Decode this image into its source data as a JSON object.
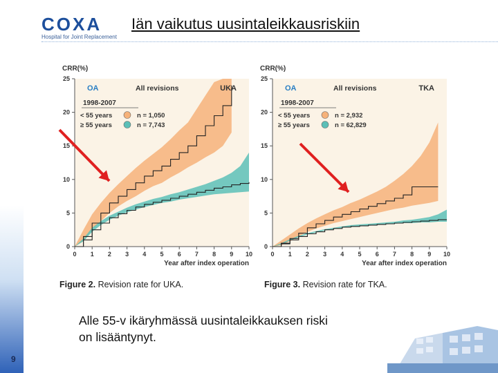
{
  "logo": {
    "word": "COXA",
    "subtitle": "Hospital for Joint Replacement"
  },
  "title": "Iän vaikutus uusintaleikkausriskiin",
  "body_text_line1": "Alle 55-v ikäryhmässä uusintaleikkauksen riski",
  "body_text_line2": "on lisääntynyt.",
  "page_number": "9",
  "colors": {
    "young": "#f6b27a",
    "old": "#5cbfb7",
    "arrow": "#e02020",
    "panel_bg": "#fbf3e6",
    "line": "#222222"
  },
  "chart_data": [
    {
      "type": "line",
      "ylabel": "CRR(%)",
      "xlabel": "Year after index operation",
      "ylim": [
        0,
        25
      ],
      "xlim": [
        0,
        10
      ],
      "yticks": [
        0,
        5,
        10,
        15,
        20,
        25
      ],
      "xticks": [
        0,
        1,
        2,
        3,
        4,
        5,
        6,
        7,
        8,
        9,
        10
      ],
      "label_oa": "OA",
      "label_rev": "All revisions",
      "label_type": "UKA",
      "period": "1998-2007",
      "legend": [
        {
          "text": "< 55 years",
          "n": "n = 1,050"
        },
        {
          "text": "≥ 55 years",
          "n": "n = 7,743"
        }
      ],
      "caption_prefix": "Figure 2.",
      "caption_text": "Revision rate for UKA.",
      "series": [
        {
          "group": "young",
          "x": [
            0,
            0.5,
            1,
            1.5,
            2,
            2.5,
            3,
            3.5,
            4,
            4.5,
            5,
            5.5,
            6,
            6.5,
            7,
            7.5,
            8,
            8.5,
            9
          ],
          "y": [
            0,
            1.5,
            3.5,
            5,
            6.5,
            7.5,
            8.5,
            9.5,
            10.5,
            11.3,
            12,
            13,
            14,
            15,
            16.5,
            18,
            19.5,
            21,
            24
          ],
          "lower": [
            0,
            0.8,
            2.5,
            3.8,
            5,
            6,
            6.8,
            7.5,
            8.3,
            9,
            9.5,
            10.3,
            11,
            11.8,
            12.5,
            13.3,
            14,
            15,
            17
          ],
          "upper": [
            0,
            2.5,
            4.8,
            6.5,
            8,
            9.3,
            10.5,
            11.7,
            12.8,
            13.8,
            14.8,
            16,
            17.3,
            18.5,
            20.5,
            22.5,
            24.5,
            25,
            25
          ]
        },
        {
          "group": "old",
          "x": [
            0,
            0.5,
            1,
            1.5,
            2,
            2.5,
            3,
            3.5,
            4,
            4.5,
            5,
            5.5,
            6,
            6.5,
            7,
            7.5,
            8,
            8.5,
            9,
            9.5,
            10
          ],
          "y": [
            0,
            1,
            2.5,
            3.5,
            4.3,
            4.9,
            5.4,
            5.9,
            6.3,
            6.6,
            6.9,
            7.2,
            7.5,
            7.8,
            8.1,
            8.4,
            8.7,
            8.9,
            9.2,
            9.4,
            9.6
          ],
          "lower": [
            0,
            0.8,
            2.2,
            3.2,
            4,
            4.6,
            5.1,
            5.5,
            5.9,
            6.2,
            6.5,
            6.7,
            7,
            7.2,
            7.4,
            7.6,
            7.8,
            7.9,
            8,
            8.1,
            8.2
          ],
          "upper": [
            0,
            1.2,
            2.8,
            3.8,
            4.6,
            5.2,
            5.8,
            6.3,
            6.7,
            7.1,
            7.4,
            7.8,
            8.1,
            8.5,
            8.9,
            9.3,
            9.8,
            10.3,
            11,
            12,
            14
          ]
        }
      ]
    },
    {
      "type": "line",
      "ylabel": "CRR(%)",
      "xlabel": "Year after index operation",
      "ylim": [
        0,
        25
      ],
      "xlim": [
        0,
        10
      ],
      "yticks": [
        0,
        5,
        10,
        15,
        20,
        25
      ],
      "xticks": [
        0,
        1,
        2,
        3,
        4,
        5,
        6,
        7,
        8,
        9,
        10
      ],
      "label_oa": "OA",
      "label_rev": "All revisions",
      "label_type": "TKA",
      "period": "1998-2007",
      "legend": [
        {
          "text": "< 55 years",
          "n": "n =   2,932"
        },
        {
          "text": "≥ 55 years",
          "n": "n = 62,829"
        }
      ],
      "caption_prefix": "Figure 3.",
      "caption_text": "Revision rate for TKA.",
      "series": [
        {
          "group": "young",
          "x": [
            0,
            0.5,
            1,
            1.5,
            2,
            2.5,
            3,
            3.5,
            4,
            4.5,
            5,
            5.5,
            6,
            6.5,
            7,
            7.5,
            8,
            8.5,
            9,
            9.5
          ],
          "y": [
            0,
            0.5,
            1.2,
            2,
            2.8,
            3.4,
            3.9,
            4.4,
            4.8,
            5.2,
            5.6,
            6,
            6.4,
            6.8,
            7.2,
            7.7,
            8.9,
            8.9,
            8.9,
            8.9
          ],
          "lower": [
            0,
            0.2,
            0.8,
            1.5,
            2.2,
            2.7,
            3.1,
            3.5,
            3.8,
            4.1,
            4.4,
            4.7,
            5,
            5.3,
            5.6,
            5.8,
            6.1,
            6.3,
            6.5,
            6.8
          ],
          "upper": [
            0,
            0.9,
            1.8,
            2.7,
            3.5,
            4.2,
            4.8,
            5.4,
            5.9,
            6.5,
            7,
            7.6,
            8.2,
            8.9,
            9.8,
            10.8,
            12,
            13.5,
            15.5,
            18.5
          ]
        },
        {
          "group": "old",
          "x": [
            0,
            0.5,
            1,
            1.5,
            2,
            2.5,
            3,
            3.5,
            4,
            4.5,
            5,
            5.5,
            6,
            6.5,
            7,
            7.5,
            8,
            8.5,
            9,
            9.5,
            10
          ],
          "y": [
            0,
            0.4,
            1,
            1.5,
            1.9,
            2.2,
            2.5,
            2.7,
            2.9,
            3,
            3.1,
            3.2,
            3.3,
            3.4,
            3.5,
            3.6,
            3.7,
            3.8,
            3.9,
            4,
            4
          ],
          "lower": [
            0,
            0.3,
            0.9,
            1.4,
            1.8,
            2.1,
            2.4,
            2.6,
            2.8,
            2.9,
            3,
            3.1,
            3.2,
            3.3,
            3.4,
            3.5,
            3.5,
            3.6,
            3.6,
            3.7,
            3.7
          ],
          "upper": [
            0,
            0.5,
            1.1,
            1.6,
            2,
            2.3,
            2.6,
            2.8,
            3,
            3.2,
            3.3,
            3.4,
            3.5,
            3.6,
            3.7,
            3.9,
            4,
            4.2,
            4.4,
            4.8,
            5.5
          ]
        }
      ]
    }
  ]
}
